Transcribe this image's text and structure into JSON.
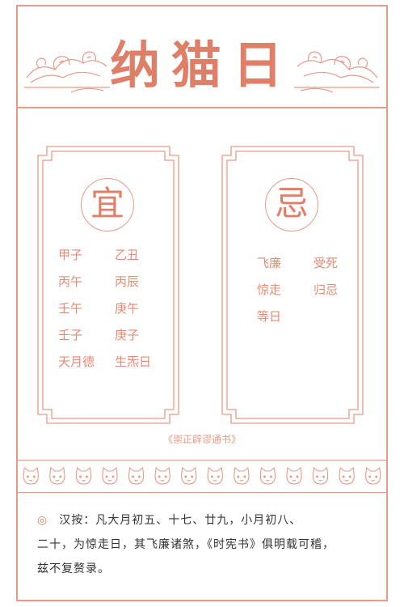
{
  "title": "纳猫日",
  "yi": {
    "seal": "宜",
    "items": [
      "甲子",
      "乙丑",
      "丙午",
      "丙辰",
      "壬午",
      "庚午",
      "壬子",
      "庚子",
      "天月德",
      "生炁日"
    ]
  },
  "ji": {
    "seal": "忌",
    "items": [
      "飞廉",
      "受死",
      "惊走",
      "归忌",
      "等日"
    ]
  },
  "source": "《崇正辟谬通书》",
  "note": {
    "mark": "◎",
    "lines": [
      "汉按：凡大月初五、十七、廿九，小月初八、",
      "二十，为惊走日，其飞廉诸煞，《时宪书》俱明载可稽，",
      "兹不复赘录。"
    ]
  },
  "colors": {
    "accent": "#e07f67",
    "line": "#e79a86",
    "text": "#333333"
  }
}
